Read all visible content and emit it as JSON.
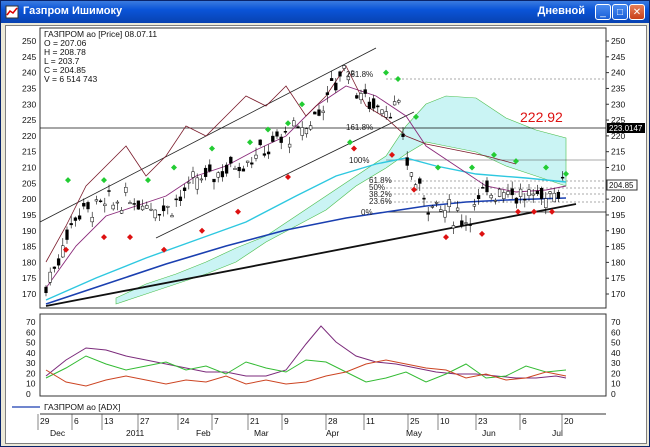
{
  "window": {
    "title": "Газпром Ишимоку",
    "period": "Дневной",
    "buttons": {
      "minimize": "_",
      "maximize": "□",
      "close": "✕"
    }
  },
  "info": {
    "name": "ГАЗПРОМ ао [Price] 08.07.11",
    "o": "O = 207.06",
    "h": "H = 208.78",
    "l": "L = 203.7",
    "c": "C = 204.85",
    "v": "V = 6 514 743"
  },
  "price_axis": {
    "ticks": [
      250,
      245,
      240,
      235,
      230,
      225,
      220,
      215,
      210,
      205,
      200,
      195,
      190,
      185,
      180,
      175,
      170
    ],
    "current_label": "204.85",
    "level_label": "223.0147"
  },
  "annotation_price": "222.92",
  "fib_labels": [
    "261.8%",
    "161.8%",
    "100%",
    "61.8%",
    "50%",
    "38.2%",
    "23.6%",
    "0%"
  ],
  "indicator": {
    "name": "ГАЗПРОМ ао [ADX]",
    "ticks": [
      70,
      60,
      50,
      40,
      30,
      20,
      10,
      0
    ]
  },
  "time_axis": {
    "days": [
      "29",
      "6",
      "13",
      "27",
      "24",
      "7",
      "21",
      "9",
      "28",
      "11",
      "25",
      "10",
      "23",
      "6",
      "20",
      "4"
    ],
    "months": [
      "Dec",
      "2011",
      "Feb",
      "Mar",
      "Apr",
      "May",
      "Jun",
      "Jul"
    ]
  },
  "colors": {
    "up_marker": "#22cc33",
    "down_marker": "#dd1111",
    "adx": "#7b2a7b",
    "plus_di": "#33bb33",
    "minus_di": "#cc4422",
    "senkou": "#9a9a9a",
    "kumo": "#3fd6d6",
    "level_red": "#dd1111"
  }
}
